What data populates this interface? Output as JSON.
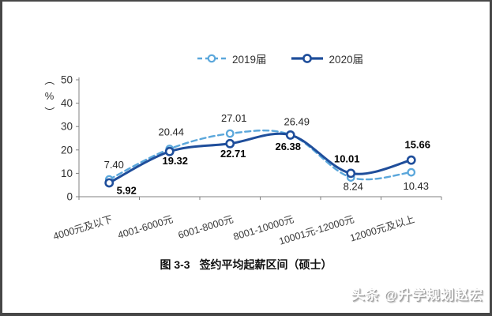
{
  "figure": {
    "caption_no": "图 3-3",
    "caption_text": "签约平均起薪区间（硕士）"
  },
  "watermark": {
    "text": "头条 @升学规划赵宏"
  },
  "colors": {
    "series_2019": "#5ba7db",
    "series_2020": "#1f4e9b",
    "axis": "#808080",
    "tick_label": "#333333",
    "value_label_2019": "#262626",
    "value_label_2020": "#000000"
  },
  "chart_data": {
    "type": "line",
    "title": "图 3-3 签约平均起薪区间（硕士）",
    "categories": [
      "4000元及以下",
      "4001-6000元",
      "6001-8000元",
      "8001-10000元",
      "10001元-12000元",
      "12000元及以上"
    ],
    "series": [
      {
        "name": "2019届",
        "style": "dashed",
        "color_key": "series_2019",
        "values": [
          7.4,
          20.44,
          27.01,
          26.49,
          8.24,
          10.43
        ]
      },
      {
        "name": "2020届",
        "style": "solid",
        "color_key": "series_2020",
        "values": [
          5.92,
          19.32,
          22.71,
          26.38,
          10.01,
          15.66
        ]
      }
    ],
    "xlabel": "",
    "ylabel": "（%）",
    "ylim": [
      0,
      50
    ],
    "y_ticks": [
      0,
      10,
      20,
      30,
      40,
      50
    ],
    "legend_position": "top",
    "grid": false,
    "value_labels": true,
    "value_label_format": "2-decimals"
  }
}
